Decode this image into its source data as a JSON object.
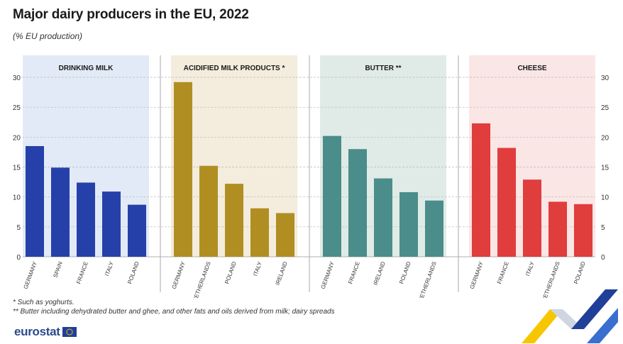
{
  "chart_data": {
    "type": "bar",
    "title": "Major dairy producers in the EU, 2022",
    "subtitle": "(% EU production)",
    "ylim": [
      0,
      30
    ],
    "yticks": [
      0,
      5,
      10,
      15,
      20,
      25,
      30
    ],
    "grid": true,
    "panels": [
      {
        "title": "DRINKING MILK",
        "categories": [
          "GERMANY",
          "SPAIN",
          "FRANCE",
          "ITALY",
          "POLAND"
        ],
        "values": [
          18.5,
          14.9,
          12.4,
          10.9,
          8.7
        ],
        "color": "#2541a9",
        "background": "#e3eaf7"
      },
      {
        "title": "ACIDIFIED MILK PRODUCTS *",
        "categories": [
          "GERMANY",
          "NETHERLANDS",
          "POLAND",
          "ITALY",
          "IRELAND"
        ],
        "values": [
          29.2,
          15.2,
          12.2,
          8.1,
          7.3
        ],
        "color": "#b08e22",
        "background": "#f4ecdc"
      },
      {
        "title": "BUTTER **",
        "categories": [
          "GERMANY",
          "FRANCE",
          "IRELAND",
          "POLAND",
          "NETHERLANDS"
        ],
        "values": [
          20.2,
          18.0,
          13.1,
          10.8,
          9.4
        ],
        "color": "#4a8d8a",
        "background": "#e0ebe8"
      },
      {
        "title": "CHEESE",
        "categories": [
          "GERMANY",
          "FRANCE",
          "ITALY",
          "NETHERLANDS",
          "POLAND"
        ],
        "values": [
          22.3,
          18.2,
          12.9,
          9.2,
          8.8
        ],
        "color": "#e03d3d",
        "background": "#fbe6e6"
      }
    ]
  },
  "footnotes": [
    "*  Such as yoghurts.",
    "** Butter including dehydrated butter and ghee, and other fats and oils derived from milk; dairy spreads"
  ],
  "logo": {
    "text": "eurostat",
    "flag_icon": "eu-flag-icon"
  }
}
